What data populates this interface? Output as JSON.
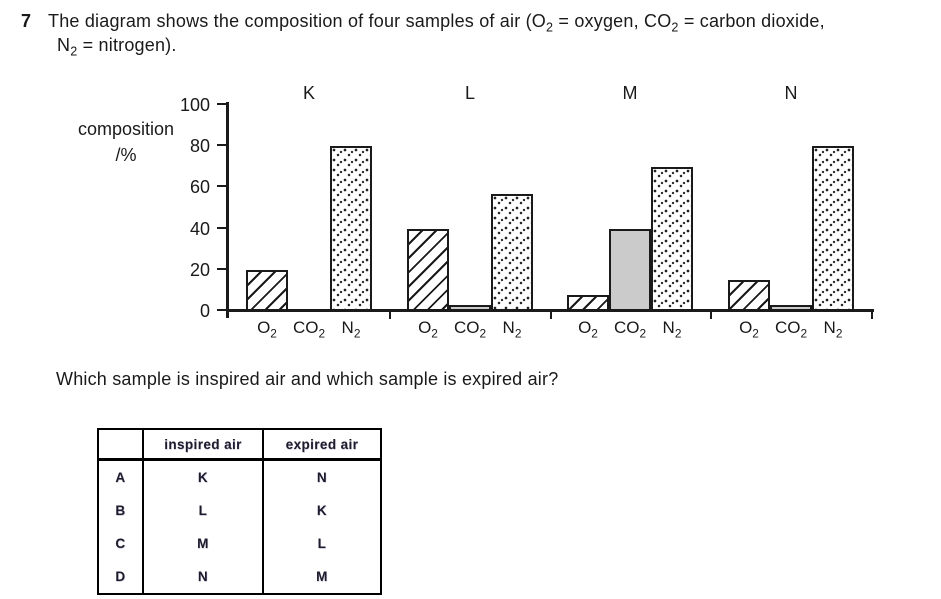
{
  "question": {
    "number": "7",
    "line1_parts": [
      {
        "t": "The diagram shows the composition of four samples of air (O"
      },
      {
        "t": "2",
        "sub": true
      },
      {
        "t": " = oxygen, CO"
      },
      {
        "t": "2",
        "sub": true
      },
      {
        "t": " = carbon dioxide,"
      }
    ],
    "line2_parts": [
      {
        "t": "N"
      },
      {
        "t": "2",
        "sub": true
      },
      {
        "t": " = nitrogen)."
      }
    ],
    "prompt": "Which sample is inspired air and which sample is expired air?"
  },
  "chart_data": {
    "type": "bar",
    "variant": "grouped",
    "title": "",
    "ylabel_line1": "composition",
    "ylabel_line2": "/%",
    "ylim": [
      0,
      100
    ],
    "y_ticks": [
      0,
      20,
      40,
      60,
      80,
      100
    ],
    "grid": false,
    "legend": false,
    "categories": [
      "K",
      "L",
      "M",
      "N"
    ],
    "gas_labels": [
      {
        "base": "O",
        "sub": "2"
      },
      {
        "base": "CO",
        "sub": "2"
      },
      {
        "base": "N",
        "sub": "2"
      }
    ],
    "series": [
      {
        "name": "O2",
        "pattern": "diagonal-hatch",
        "values": [
          20,
          40,
          8,
          15
        ]
      },
      {
        "name": "CO2",
        "pattern": "solid-gray",
        "values": [
          1,
          3,
          40,
          3
        ]
      },
      {
        "name": "N2",
        "pattern": "stipple-dots",
        "values": [
          80,
          57,
          70,
          80
        ]
      }
    ]
  },
  "answer_table": {
    "headers": [
      "",
      "inspired air",
      "expired air"
    ],
    "rows": [
      {
        "option": "A",
        "inspired": "K",
        "expired": "N"
      },
      {
        "option": "B",
        "inspired": "L",
        "expired": "K"
      },
      {
        "option": "C",
        "inspired": "M",
        "expired": "L"
      },
      {
        "option": "D",
        "inspired": "N",
        "expired": "M"
      }
    ]
  },
  "colors": {
    "ink": "#1a1a1a",
    "bar_gray": "#cbcbcb",
    "background": "#ffffff"
  }
}
